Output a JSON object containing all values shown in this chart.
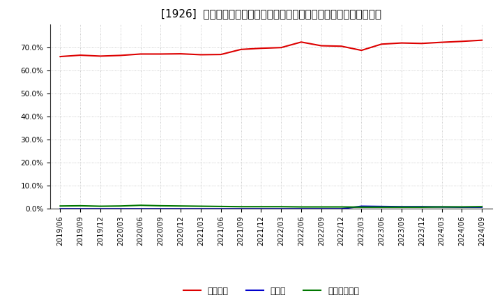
{
  "title": "[1926]  自己資本、のれん、繰延税金資産の総資産に対する比率の推移",
  "dates": [
    "2019/06",
    "2019/09",
    "2019/12",
    "2020/03",
    "2020/06",
    "2020/09",
    "2020/12",
    "2021/03",
    "2021/06",
    "2021/09",
    "2021/12",
    "2022/03",
    "2022/06",
    "2022/09",
    "2022/12",
    "2023/03",
    "2023/06",
    "2023/09",
    "2023/12",
    "2024/03",
    "2024/06",
    "2024/09"
  ],
  "equity_ratio": [
    0.661,
    0.667,
    0.663,
    0.666,
    0.672,
    0.672,
    0.673,
    0.669,
    0.67,
    0.692,
    0.697,
    0.7,
    0.724,
    0.708,
    0.706,
    0.688,
    0.715,
    0.72,
    0.718,
    0.723,
    0.727,
    0.732
  ],
  "goodwill_ratio": [
    0.0,
    0.0,
    0.0,
    0.0,
    0.0,
    0.0,
    0.0,
    0.0,
    0.0,
    0.0,
    0.0,
    0.0,
    0.0,
    0.0,
    0.0,
    0.011,
    0.01,
    0.009,
    0.009,
    0.008,
    0.007,
    0.007
  ],
  "deferred_tax_ratio": [
    0.012,
    0.013,
    0.011,
    0.012,
    0.015,
    0.013,
    0.012,
    0.011,
    0.01,
    0.009,
    0.009,
    0.009,
    0.008,
    0.008,
    0.008,
    0.007,
    0.007,
    0.007,
    0.007,
    0.008,
    0.008,
    0.009
  ],
  "equity_color": "#dd0000",
  "goodwill_color": "#0000cc",
  "deferred_tax_color": "#007700",
  "background_color": "#ffffff",
  "plot_bg_color": "#ffffff",
  "grid_color": "#bbbbbb",
  "ylim": [
    0.0,
    0.8
  ],
  "yticks": [
    0.0,
    0.1,
    0.2,
    0.3,
    0.4,
    0.5,
    0.6,
    0.7
  ],
  "legend_labels": [
    "自己資本",
    "のれん",
    "繰延税金資産"
  ],
  "title_fontsize": 11,
  "tick_fontsize": 7.5
}
